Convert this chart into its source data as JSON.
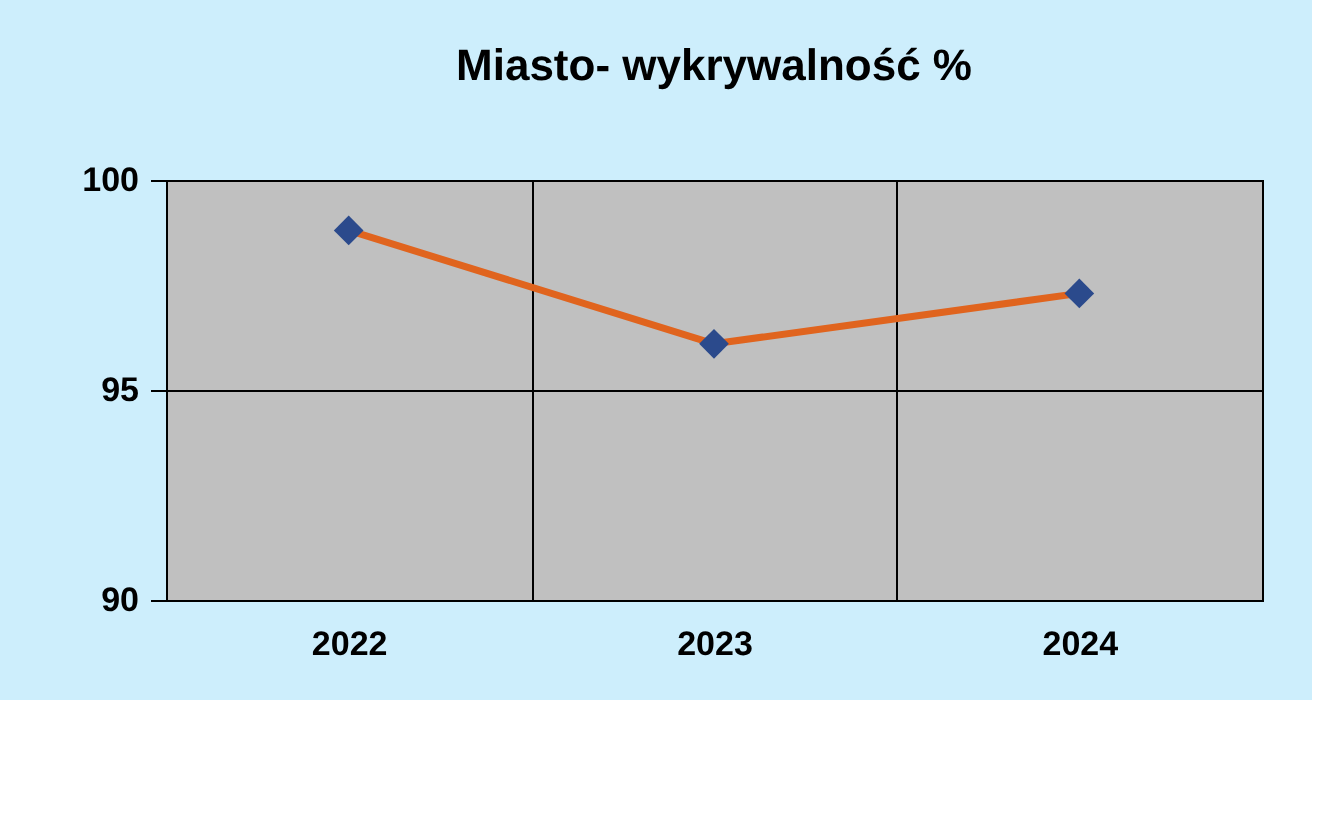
{
  "chart_data": {
    "type": "line",
    "title": "Miasto- wykrywalność %",
    "categories": [
      "2022",
      "2023",
      "2024"
    ],
    "series": [
      {
        "color": "#e0641e",
        "values": [
          98.8,
          96.1,
          97.3
        ]
      }
    ],
    "ylim": [
      90,
      100
    ],
    "yticks": [
      90,
      95,
      100
    ],
    "grid": true,
    "marker": "diamond",
    "line_style": "solid"
  }
}
